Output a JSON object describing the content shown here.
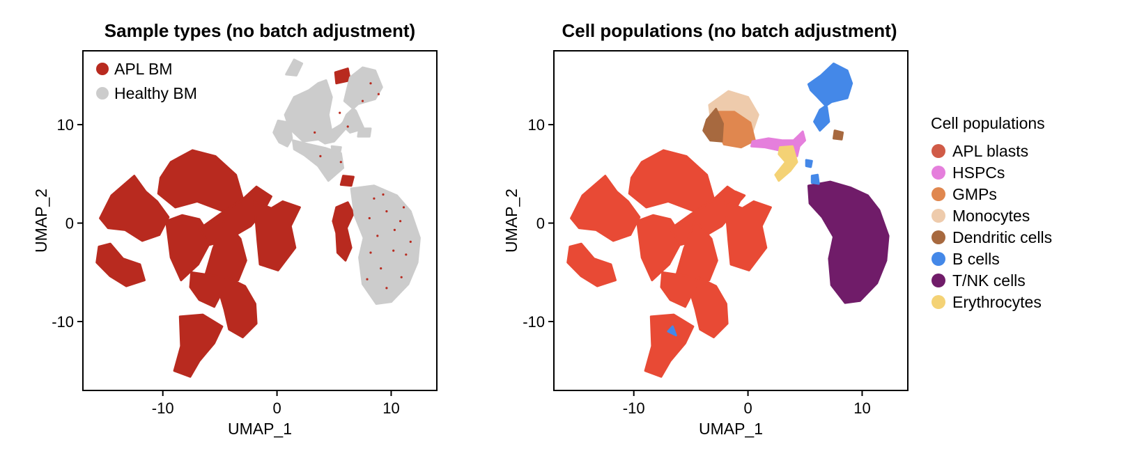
{
  "chart_data": [
    {
      "type": "scatter",
      "title": "Sample types (no batch adjustment)",
      "xlabel": "UMAP_1",
      "ylabel": "UMAP_2",
      "xlim": [
        -17,
        14
      ],
      "ylim": [
        -17,
        17.5
      ],
      "xticks": [
        "-10",
        "0",
        "10"
      ],
      "yticks": [
        "10",
        "0",
        "-10"
      ],
      "xtick_values": [
        -10,
        0,
        10
      ],
      "ytick_values": [
        10,
        0,
        -10
      ],
      "legend_position": "top-left",
      "grid": false,
      "series": [
        {
          "name": "APL BM",
          "color": "#b82a1f"
        },
        {
          "name": "Healthy BM",
          "color": "#cccccc"
        }
      ]
    },
    {
      "type": "scatter",
      "title": "Cell populations (no batch adjustment)",
      "xlabel": "UMAP_1",
      "ylabel": "UMAP_2",
      "xlim": [
        -17,
        14
      ],
      "ylim": [
        -17,
        17.5
      ],
      "xticks": [
        "-10",
        "0",
        "10"
      ],
      "yticks": [
        "10",
        "0",
        "-10"
      ],
      "xtick_values": [
        -10,
        0,
        10
      ],
      "ytick_values": [
        10,
        0,
        -10
      ],
      "legend_position": "right",
      "legend_title": "Cell populations",
      "grid": false,
      "series": [
        {
          "name": "APL blasts",
          "color": "#d05b47"
        },
        {
          "name": "HSPCs",
          "color": "#e57fdc"
        },
        {
          "name": "GMPs",
          "color": "#e0874f"
        },
        {
          "name": "Monocytes",
          "color": "#eecbac"
        },
        {
          "name": "Dendritic cells",
          "color": "#a7693f"
        },
        {
          "name": "B cells",
          "color": "#4488e8"
        },
        {
          "name": "T/NK cells",
          "color": "#701c69"
        },
        {
          "name": "Erythrocytes",
          "color": "#f4d275"
        }
      ]
    }
  ]
}
